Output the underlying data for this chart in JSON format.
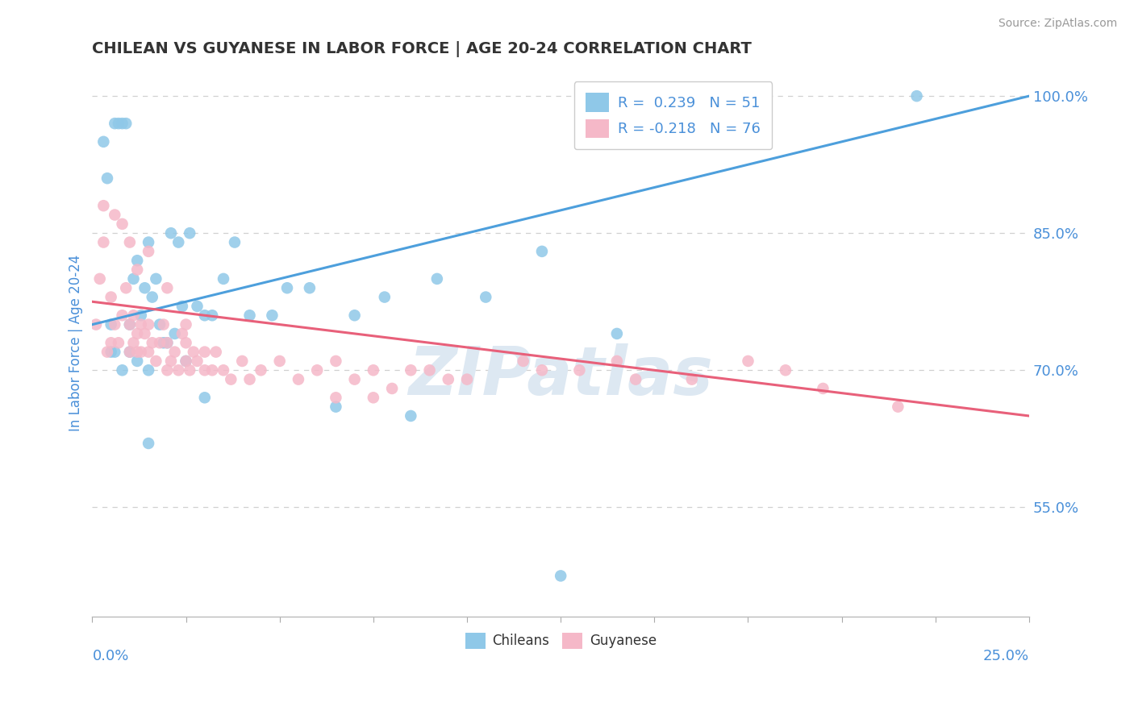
{
  "title": "CHILEAN VS GUYANESE IN LABOR FORCE | AGE 20-24 CORRELATION CHART",
  "source": "Source: ZipAtlas.com",
  "ylabel": "In Labor Force | Age 20-24",
  "xmin": 0.0,
  "xmax": 25.0,
  "ymin": 43.0,
  "ymax": 103.0,
  "yticks": [
    55.0,
    70.0,
    85.0,
    100.0
  ],
  "ytick_labels": [
    "55.0%",
    "70.0%",
    "85.0%",
    "100.0%"
  ],
  "watermark_text": "ZIPatlas",
  "legend_line1": "R =  0.239   N = 51",
  "legend_line2": "R = -0.218   N = 76",
  "blue_scatter_color": "#8fc8e8",
  "pink_scatter_color": "#f5b8c8",
  "trendline_blue_color": "#4d9fdc",
  "trendline_pink_color": "#e8607a",
  "axis_label_color": "#4a90d9",
  "grid_color": "#d0d0d0",
  "title_color": "#333333",
  "source_color": "#999999",
  "blue_trendline_y0": 75.0,
  "blue_trendline_y1": 100.0,
  "pink_trendline_y0": 77.5,
  "pink_trendline_y1": 65.0,
  "chileans_x": [
    0.3,
    0.4,
    0.6,
    0.7,
    0.8,
    0.9,
    1.0,
    1.1,
    1.2,
    1.3,
    1.4,
    1.5,
    1.6,
    1.7,
    1.8,
    1.9,
    2.0,
    2.1,
    2.2,
    2.3,
    2.4,
    2.6,
    2.8,
    3.0,
    3.2,
    3.5,
    3.8,
    4.2,
    4.8,
    5.2,
    5.8,
    6.5,
    7.0,
    7.8,
    8.5,
    9.2,
    10.5,
    12.0,
    14.0,
    3.0,
    1.5,
    0.5,
    0.5,
    0.6,
    0.8,
    1.0,
    1.2,
    1.5,
    2.5,
    22.0,
    12.5
  ],
  "chileans_y": [
    95.0,
    91.0,
    97.0,
    97.0,
    97.0,
    97.0,
    75.0,
    80.0,
    82.0,
    76.0,
    79.0,
    84.0,
    78.0,
    80.0,
    75.0,
    73.0,
    73.0,
    85.0,
    74.0,
    84.0,
    77.0,
    85.0,
    77.0,
    76.0,
    76.0,
    80.0,
    84.0,
    76.0,
    76.0,
    79.0,
    79.0,
    66.0,
    76.0,
    78.0,
    65.0,
    80.0,
    78.0,
    83.0,
    74.0,
    67.0,
    62.0,
    72.0,
    75.0,
    72.0,
    70.0,
    72.0,
    71.0,
    70.0,
    71.0,
    100.0,
    47.5
  ],
  "guyanese_x": [
    0.1,
    0.2,
    0.3,
    0.4,
    0.5,
    0.5,
    0.6,
    0.7,
    0.8,
    0.9,
    1.0,
    1.0,
    1.1,
    1.1,
    1.2,
    1.2,
    1.3,
    1.3,
    1.4,
    1.5,
    1.5,
    1.6,
    1.7,
    1.8,
    1.9,
    2.0,
    2.0,
    2.1,
    2.2,
    2.3,
    2.4,
    2.5,
    2.5,
    2.6,
    2.7,
    2.8,
    3.0,
    3.0,
    3.2,
    3.3,
    3.5,
    3.7,
    4.0,
    4.2,
    4.5,
    5.0,
    5.5,
    6.0,
    6.5,
    7.0,
    7.5,
    8.0,
    8.5,
    9.0,
    10.0,
    11.5,
    13.0,
    14.5,
    16.0,
    17.5,
    18.5,
    0.3,
    0.6,
    0.8,
    1.0,
    1.2,
    1.5,
    2.0,
    2.5,
    9.5,
    12.0,
    14.0,
    6.5,
    7.5,
    19.5,
    21.5
  ],
  "guyanese_y": [
    75.0,
    80.0,
    84.0,
    72.0,
    78.0,
    73.0,
    75.0,
    73.0,
    76.0,
    79.0,
    72.0,
    75.0,
    76.0,
    73.0,
    74.0,
    72.0,
    75.0,
    72.0,
    74.0,
    72.0,
    75.0,
    73.0,
    71.0,
    73.0,
    75.0,
    70.0,
    73.0,
    71.0,
    72.0,
    70.0,
    74.0,
    71.0,
    73.0,
    70.0,
    72.0,
    71.0,
    70.0,
    72.0,
    70.0,
    72.0,
    70.0,
    69.0,
    71.0,
    69.0,
    70.0,
    71.0,
    69.0,
    70.0,
    71.0,
    69.0,
    70.0,
    68.0,
    70.0,
    70.0,
    69.0,
    71.0,
    70.0,
    69.0,
    69.0,
    71.0,
    70.0,
    88.0,
    87.0,
    86.0,
    84.0,
    81.0,
    83.0,
    79.0,
    75.0,
    69.0,
    70.0,
    71.0,
    67.0,
    67.0,
    68.0,
    66.0
  ]
}
